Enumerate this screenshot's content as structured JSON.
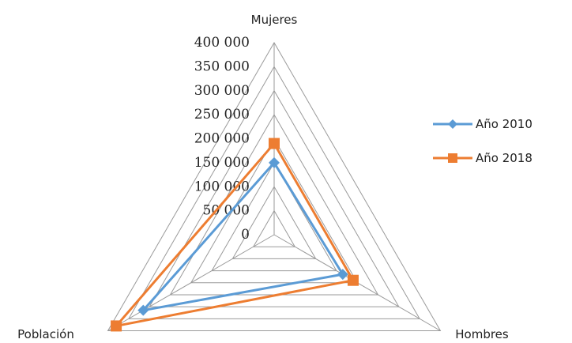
{
  "chart_data": {
    "type": "radar",
    "categories": [
      "Mujeres",
      "Hombres",
      "Población"
    ],
    "r_min": 0,
    "r_max": 400000,
    "tick_step": 50000,
    "tick_labels": [
      "0",
      "50 000",
      "100 000",
      "150 000",
      "200 000",
      "250 000",
      "300 000",
      "350 000",
      "400 000"
    ],
    "grid": true,
    "legend_position": "right",
    "series": [
      {
        "name": "Año 2010",
        "values": [
          150000,
          165000,
          315000
        ],
        "color": "#5b9bd5",
        "marker": "diamond"
      },
      {
        "name": "Año 2018",
        "values": [
          190000,
          190000,
          380000
        ],
        "color": "#ed7d31",
        "marker": "square"
      }
    ]
  }
}
